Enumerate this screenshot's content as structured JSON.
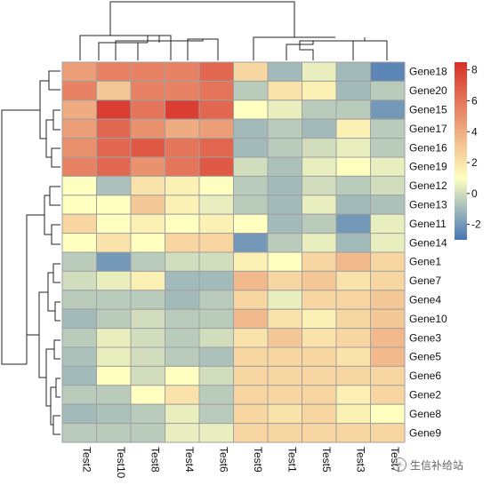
{
  "chart_data": {
    "type": "heatmap",
    "title": "",
    "xlabel": "",
    "ylabel": "",
    "columns": [
      "Test2",
      "Test10",
      "Test8",
      "Test4",
      "Test6",
      "Test9",
      "Test1",
      "Test5",
      "Test3",
      "Test7"
    ],
    "rows": [
      "Gene18",
      "Gene20",
      "Gene15",
      "Gene17",
      "Gene16",
      "Gene19",
      "Gene12",
      "Gene13",
      "Gene11",
      "Gene14",
      "Gene1",
      "Gene7",
      "Gene4",
      "Gene10",
      "Gene3",
      "Gene5",
      "Gene6",
      "Gene2",
      "Gene8",
      "Gene9"
    ],
    "values": [
      [
        4.5,
        5.5,
        5.5,
        5.5,
        6.5,
        2.5,
        -1.0,
        0.5,
        -1.0,
        -2.5
      ],
      [
        5.5,
        3.0,
        5.5,
        5.5,
        6.0,
        -0.5,
        2.0,
        1.5,
        -1.0,
        -0.5
      ],
      [
        4.0,
        8.0,
        6.0,
        8.0,
        6.5,
        1.0,
        0.5,
        -0.5,
        -0.5,
        -2.0
      ],
      [
        4.5,
        6.5,
        5.0,
        4.0,
        4.5,
        -1.0,
        -0.5,
        -1.0,
        1.5,
        -0.5
      ],
      [
        5.0,
        6.5,
        7.0,
        6.0,
        6.5,
        -1.0,
        -0.5,
        0.0,
        0.5,
        -0.5
      ],
      [
        5.5,
        6.5,
        5.0,
        6.0,
        7.0,
        0.0,
        -0.8,
        0.5,
        1.0,
        0.5
      ],
      [
        1.0,
        -0.8,
        2.0,
        1.5,
        1.0,
        -0.5,
        -1.0,
        0.0,
        -0.5,
        0.0
      ],
      [
        1.0,
        1.0,
        3.0,
        1.5,
        0.5,
        -0.5,
        -1.0,
        0.5,
        -1.0,
        -0.8
      ],
      [
        2.5,
        1.0,
        1.5,
        1.0,
        1.5,
        1.0,
        -1.0,
        -0.5,
        -2.0,
        0.5
      ],
      [
        1.0,
        2.0,
        1.0,
        2.5,
        2.5,
        -2.0,
        -0.5,
        0.5,
        -1.0,
        0.5
      ],
      [
        -0.5,
        -2.0,
        -0.5,
        0.0,
        0.0,
        1.5,
        1.0,
        2.5,
        3.5,
        2.5
      ],
      [
        0.0,
        0.5,
        1.5,
        -1.0,
        -1.0,
        3.5,
        2.5,
        3.0,
        2.0,
        2.5
      ],
      [
        -0.5,
        -0.5,
        -0.5,
        -1.0,
        -0.5,
        2.5,
        0.5,
        2.5,
        2.5,
        3.0
      ],
      [
        -1.0,
        -0.5,
        0.0,
        -0.5,
        -0.5,
        3.5,
        2.0,
        1.5,
        2.5,
        3.0
      ],
      [
        -0.5,
        0.5,
        0.0,
        -0.5,
        0.0,
        2.0,
        3.0,
        2.0,
        2.5,
        3.5
      ],
      [
        -0.8,
        0.5,
        0.0,
        -0.5,
        -0.8,
        2.5,
        2.5,
        2.5,
        2.0,
        3.5
      ],
      [
        -1.0,
        1.0,
        0.0,
        1.0,
        0.0,
        2.5,
        2.5,
        2.5,
        2.5,
        2.5
      ],
      [
        -0.5,
        -0.5,
        1.0,
        2.0,
        -0.5,
        2.5,
        2.5,
        2.5,
        1.5,
        2.5
      ],
      [
        -1.0,
        -0.8,
        -0.5,
        0.5,
        -0.5,
        2.5,
        2.0,
        2.5,
        1.5,
        1.0
      ],
      [
        -0.5,
        -0.5,
        -0.5,
        0.5,
        0.5,
        2.5,
        2.5,
        2.5,
        2.5,
        2.5
      ]
    ],
    "color_scale": {
      "min": -3,
      "max": 8.5,
      "stops": [
        {
          "value": -3,
          "color": "#4575b4"
        },
        {
          "value": 1,
          "color": "#ffffbf"
        },
        {
          "value": 8.5,
          "color": "#d73027"
        }
      ],
      "ticks": [
        -2,
        0,
        2,
        4,
        6,
        8
      ]
    },
    "cell_border_color": "#a0a0a0",
    "legend_placement": "right",
    "dendrograms": [
      "top",
      "left"
    ]
  },
  "watermark": {
    "text": "生信补给站",
    "icon": "wechat-icon"
  }
}
